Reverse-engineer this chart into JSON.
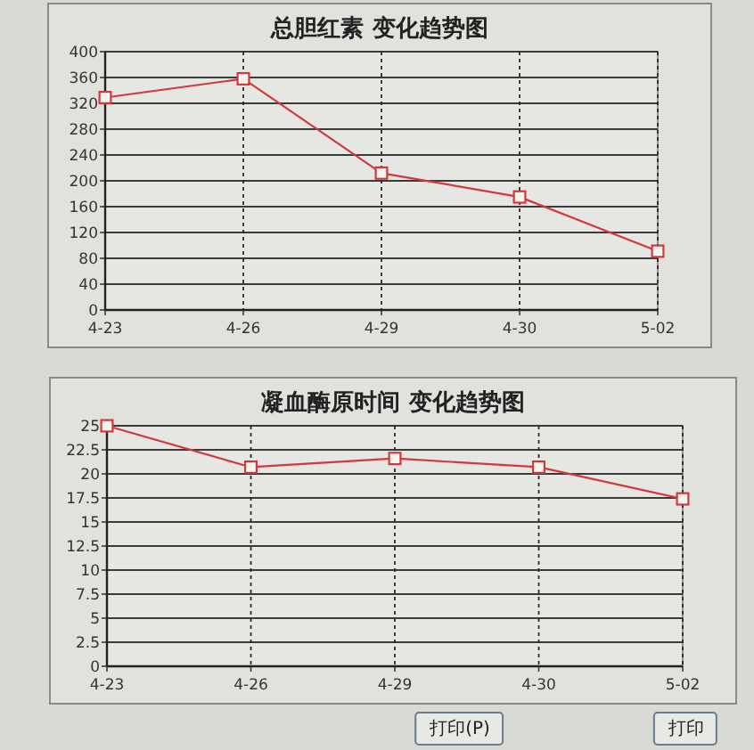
{
  "chart_data": [
    {
      "type": "line",
      "title": "总胆红素 变化趋势图",
      "categories": [
        "4-23",
        "4-26",
        "4-29",
        "4-30",
        "5-02"
      ],
      "series": [
        {
          "color": "#d03a3a",
          "values": [
            329,
            358,
            212,
            175,
            91
          ]
        }
      ],
      "ylim": [
        0,
        400
      ],
      "yticks": [
        0,
        40,
        80,
        120,
        160,
        200,
        240,
        280,
        320,
        360,
        400
      ],
      "grid": true,
      "marker": "square",
      "line_style": "solid"
    },
    {
      "type": "line",
      "title": "凝血酶原时间 变化趋势图",
      "categories": [
        "4-23",
        "4-26",
        "4-29",
        "4-30",
        "5-02"
      ],
      "series": [
        {
          "color": "#d03a3a",
          "values": [
            25,
            20.7,
            21.6,
            20.7,
            17.4
          ]
        }
      ],
      "ylim": [
        0,
        25
      ],
      "yticks": [
        0,
        2.5,
        5,
        7.5,
        10,
        12.5,
        15,
        17.5,
        20,
        22.5,
        25
      ],
      "grid": true,
      "marker": "square",
      "line_style": "solid",
      "annotations": [
        "打印(P)",
        "打印"
      ]
    }
  ]
}
